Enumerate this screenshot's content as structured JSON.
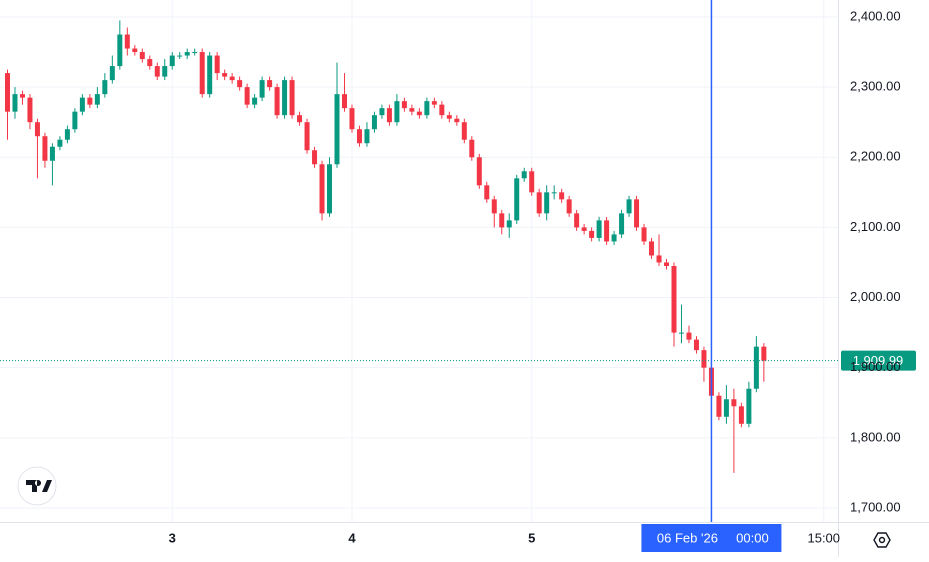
{
  "chart_data": {
    "type": "candlestick",
    "up_color": "#089981",
    "down_color": "#f23645",
    "grid": true,
    "xlim": [
      1.0,
      112.9
    ],
    "ylim": [
      1680,
      2424.2
    ],
    "xticks": [
      {
        "value": 24,
        "label": "3"
      },
      {
        "value": 48,
        "label": "4"
      },
      {
        "value": 72,
        "label": "5"
      },
      {
        "value": 111,
        "label": "15:00"
      }
    ],
    "yticks": [
      {
        "value": 1700,
        "label": "1,700.00"
      },
      {
        "value": 1800,
        "label": "1,800.00"
      },
      {
        "value": 1900,
        "label": "1,900.00"
      },
      {
        "value": 2000,
        "label": "2,000.00"
      },
      {
        "value": 2100,
        "label": "2,100.00"
      },
      {
        "value": 2200,
        "label": "2,200.00"
      },
      {
        "value": 2300,
        "label": "2,300.00"
      },
      {
        "value": 2400,
        "label": "2,400.00"
      }
    ],
    "crosshair": {
      "value": 96,
      "date": "06 Feb '26",
      "time": "00:00",
      "color": "#2962ff"
    },
    "last_price": {
      "value": 1909.99,
      "label": "1,909.99"
    },
    "x": [
      2,
      3,
      4,
      5,
      6,
      7,
      8,
      9,
      10,
      11,
      12,
      13,
      14,
      15,
      16,
      17,
      18,
      19,
      20,
      21,
      22,
      23,
      24,
      25,
      26,
      27,
      28,
      29,
      30,
      31,
      32,
      33,
      34,
      35,
      36,
      37,
      38,
      39,
      40,
      41,
      42,
      43,
      44,
      45,
      46,
      47,
      48,
      49,
      50,
      51,
      52,
      53,
      54,
      55,
      56,
      57,
      58,
      59,
      60,
      61,
      62,
      63,
      64,
      65,
      66,
      67,
      68,
      69,
      70,
      71,
      72,
      73,
      74,
      75,
      76,
      77,
      78,
      79,
      80,
      81,
      82,
      83,
      84,
      85,
      86,
      87,
      88,
      89,
      90,
      91,
      92,
      93,
      94,
      95,
      96,
      97,
      98,
      99,
      100,
      101,
      102,
      103
    ],
    "open": [
      2320,
      2265,
      2290,
      2285,
      2250,
      2230,
      2195,
      2215,
      2225,
      2240,
      2265,
      2285,
      2275,
      2290,
      2310,
      2330,
      2375,
      2355,
      2350,
      2340,
      2330,
      2315,
      2330,
      2345,
      2345,
      2350,
      2350,
      2290,
      2345,
      2320,
      2315,
      2310,
      2300,
      2275,
      2285,
      2310,
      2300,
      2260,
      2310,
      2260,
      2250,
      2210,
      2190,
      2120,
      2190,
      2290,
      2270,
      2240,
      2220,
      2240,
      2260,
      2270,
      2250,
      2280,
      2270,
      2265,
      2260,
      2280,
      2275,
      2260,
      2255,
      2250,
      2225,
      2200,
      2160,
      2140,
      2120,
      2100,
      2110,
      2170,
      2180,
      2150,
      2120,
      2150,
      2150,
      2140,
      2120,
      2100,
      2095,
      2085,
      2110,
      2080,
      2090,
      2120,
      2140,
      2100,
      2080,
      2060,
      2050,
      2045,
      1950,
      1950,
      1940,
      1925,
      1900,
      1860,
      1830,
      1855,
      1845,
      1820,
      1870,
      1930
    ],
    "high": [
      2325,
      2300,
      2295,
      2290,
      2255,
      2235,
      2220,
      2230,
      2245,
      2270,
      2290,
      2290,
      2300,
      2320,
      2345,
      2395,
      2385,
      2360,
      2355,
      2345,
      2335,
      2340,
      2350,
      2350,
      2355,
      2355,
      2355,
      2350,
      2350,
      2325,
      2320,
      2315,
      2305,
      2290,
      2315,
      2315,
      2305,
      2315,
      2315,
      2265,
      2255,
      2215,
      2195,
      2200,
      2335,
      2320,
      2275,
      2245,
      2250,
      2265,
      2275,
      2275,
      2290,
      2285,
      2275,
      2270,
      2285,
      2285,
      2280,
      2265,
      2260,
      2255,
      2230,
      2205,
      2165,
      2145,
      2125,
      2120,
      2175,
      2185,
      2185,
      2155,
      2160,
      2160,
      2155,
      2145,
      2125,
      2105,
      2100,
      2115,
      2115,
      2095,
      2125,
      2145,
      2145,
      2105,
      2085,
      2090,
      2055,
      2050,
      1990,
      1960,
      1945,
      1930,
      1905,
      1865,
      1875,
      1870,
      1850,
      1880,
      1945,
      1935
    ],
    "low": [
      2225,
      2255,
      2275,
      2240,
      2170,
      2185,
      2160,
      2210,
      2220,
      2235,
      2260,
      2270,
      2270,
      2285,
      2305,
      2325,
      2345,
      2345,
      2335,
      2325,
      2310,
      2310,
      2325,
      2340,
      2340,
      2345,
      2285,
      2285,
      2310,
      2310,
      2305,
      2295,
      2270,
      2270,
      2280,
      2295,
      2255,
      2255,
      2255,
      2245,
      2205,
      2185,
      2110,
      2115,
      2185,
      2265,
      2235,
      2215,
      2215,
      2235,
      2255,
      2245,
      2245,
      2265,
      2260,
      2255,
      2255,
      2270,
      2255,
      2250,
      2245,
      2220,
      2195,
      2155,
      2135,
      2100,
      2090,
      2085,
      2105,
      2165,
      2145,
      2115,
      2110,
      2140,
      2135,
      2115,
      2095,
      2090,
      2080,
      2080,
      2075,
      2075,
      2085,
      2115,
      2095,
      2075,
      2055,
      2045,
      2040,
      1930,
      1935,
      1935,
      1920,
      1880,
      1820,
      1825,
      1820,
      1750,
      1815,
      1815,
      1865,
      1880
    ],
    "close": [
      2265,
      2290,
      2285,
      2250,
      2230,
      2195,
      2215,
      2225,
      2240,
      2265,
      2285,
      2275,
      2290,
      2310,
      2330,
      2375,
      2355,
      2350,
      2340,
      2330,
      2315,
      2330,
      2345,
      2345,
      2350,
      2350,
      2290,
      2345,
      2320,
      2315,
      2310,
      2300,
      2275,
      2285,
      2310,
      2300,
      2260,
      2310,
      2260,
      2250,
      2210,
      2190,
      2120,
      2190,
      2290,
      2270,
      2240,
      2220,
      2240,
      2260,
      2270,
      2250,
      2280,
      2270,
      2265,
      2260,
      2280,
      2275,
      2260,
      2255,
      2250,
      2225,
      2200,
      2160,
      2140,
      2120,
      2100,
      2110,
      2170,
      2180,
      2150,
      2120,
      2150,
      2150,
      2140,
      2120,
      2100,
      2095,
      2085,
      2110,
      2080,
      2090,
      2120,
      2140,
      2100,
      2080,
      2060,
      2050,
      2045,
      1950,
      1950,
      1940,
      1925,
      1900,
      1860,
      1830,
      1855,
      1845,
      1820,
      1870,
      1930,
      1909.99
    ]
  }
}
